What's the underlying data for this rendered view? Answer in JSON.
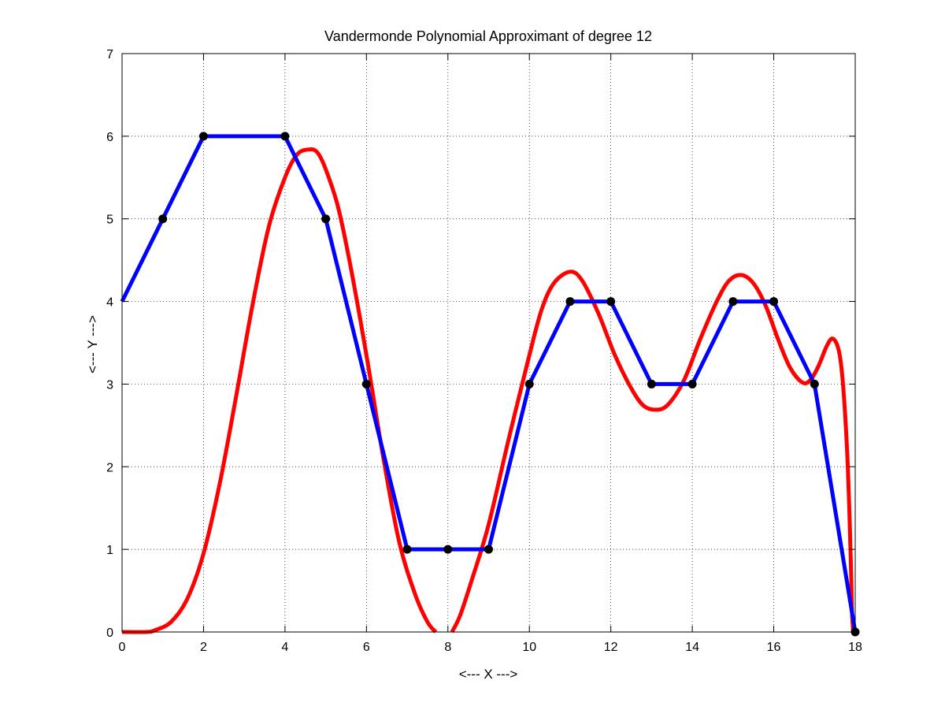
{
  "chart_data": {
    "type": "line",
    "title": "Vandermonde Polynomial Approximant of degree 12",
    "xlabel": "<--- X --->",
    "ylabel": "<--- Y --->",
    "xlim": [
      0,
      18
    ],
    "ylim": [
      0,
      7
    ],
    "xticks": [
      0,
      2,
      4,
      6,
      8,
      10,
      12,
      14,
      16,
      18
    ],
    "yticks": [
      0,
      1,
      2,
      3,
      4,
      5,
      6,
      7
    ],
    "grid": true,
    "legend": "none",
    "series": [
      {
        "color": "#ff0000",
        "style": "curve",
        "points": [
          [
            0,
            0.0
          ],
          [
            0.6,
            0.0
          ],
          [
            0.8,
            0.02
          ],
          [
            1.2,
            0.12
          ],
          [
            1.6,
            0.4
          ],
          [
            2.0,
            0.95
          ],
          [
            2.4,
            1.8
          ],
          [
            2.8,
            2.85
          ],
          [
            3.2,
            3.95
          ],
          [
            3.6,
            4.9
          ],
          [
            4.0,
            5.5
          ],
          [
            4.3,
            5.78
          ],
          [
            4.6,
            5.84
          ],
          [
            4.8,
            5.8
          ],
          [
            5.0,
            5.6
          ],
          [
            5.3,
            5.15
          ],
          [
            5.6,
            4.45
          ],
          [
            6.0,
            3.35
          ],
          [
            6.4,
            2.15
          ],
          [
            6.8,
            1.1
          ],
          [
            7.2,
            0.45
          ],
          [
            7.5,
            0.12
          ],
          [
            7.7,
            0.0
          ]
        ]
      },
      {
        "color": "#ff0000",
        "style": "curve",
        "points": [
          [
            8.1,
            0.0
          ],
          [
            8.3,
            0.2
          ],
          [
            8.6,
            0.65
          ],
          [
            9.0,
            1.3
          ],
          [
            9.5,
            2.35
          ],
          [
            10.0,
            3.35
          ],
          [
            10.3,
            3.9
          ],
          [
            10.6,
            4.22
          ],
          [
            11.0,
            4.36
          ],
          [
            11.3,
            4.25
          ],
          [
            11.7,
            3.85
          ],
          [
            12.1,
            3.35
          ],
          [
            12.5,
            2.95
          ],
          [
            12.8,
            2.74
          ],
          [
            13.1,
            2.69
          ],
          [
            13.4,
            2.75
          ],
          [
            13.8,
            3.05
          ],
          [
            14.2,
            3.55
          ],
          [
            14.6,
            4.0
          ],
          [
            14.9,
            4.25
          ],
          [
            15.2,
            4.32
          ],
          [
            15.5,
            4.22
          ],
          [
            15.8,
            3.95
          ],
          [
            16.1,
            3.55
          ],
          [
            16.4,
            3.2
          ],
          [
            16.7,
            3.02
          ],
          [
            16.9,
            3.05
          ],
          [
            17.1,
            3.22
          ],
          [
            17.3,
            3.46
          ],
          [
            17.45,
            3.55
          ],
          [
            17.6,
            3.4
          ],
          [
            17.7,
            3.0
          ],
          [
            17.8,
            2.2
          ],
          [
            17.86,
            1.4
          ],
          [
            17.9,
            0.7
          ],
          [
            17.92,
            0.25
          ],
          [
            17.95,
            0.0
          ]
        ]
      },
      {
        "color": "#0000ff",
        "style": "polyline",
        "points": [
          [
            0,
            4
          ],
          [
            1,
            5
          ],
          [
            2,
            6
          ],
          [
            4,
            6
          ],
          [
            5,
            5
          ],
          [
            6,
            3
          ],
          [
            7,
            1
          ],
          [
            8,
            1
          ],
          [
            9,
            1
          ],
          [
            10,
            3
          ],
          [
            11,
            4
          ],
          [
            12,
            4
          ],
          [
            13,
            3
          ],
          [
            14,
            3
          ],
          [
            15,
            4
          ],
          [
            16,
            4
          ],
          [
            17,
            3
          ],
          [
            18,
            0
          ]
        ]
      }
    ],
    "markers": {
      "color": "#000000",
      "points": [
        [
          1,
          5
        ],
        [
          2,
          6
        ],
        [
          4,
          6
        ],
        [
          5,
          5
        ],
        [
          6,
          3
        ],
        [
          7,
          1
        ],
        [
          8,
          1
        ],
        [
          9,
          1
        ],
        [
          10,
          3
        ],
        [
          11,
          4
        ],
        [
          12,
          4
        ],
        [
          13,
          3
        ],
        [
          14,
          3
        ],
        [
          15,
          4
        ],
        [
          16,
          4
        ],
        [
          17,
          3
        ],
        [
          18,
          0
        ]
      ]
    }
  }
}
